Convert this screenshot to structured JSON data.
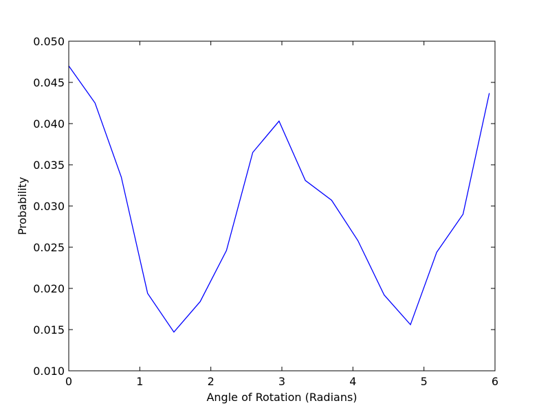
{
  "chart_data": {
    "type": "line",
    "title": "",
    "xlabel": "Angle of Rotation (Radians)",
    "ylabel": "Probability",
    "xlim": [
      0,
      6
    ],
    "ylim": [
      0.01,
      0.05
    ],
    "grid": false,
    "x_ticks": [
      0,
      1,
      2,
      3,
      4,
      5,
      6
    ],
    "x_tick_labels": [
      "0",
      "1",
      "2",
      "3",
      "4",
      "5",
      "6"
    ],
    "y_ticks": [
      0.01,
      0.015,
      0.02,
      0.025,
      0.03,
      0.035,
      0.04,
      0.045,
      0.05
    ],
    "y_tick_labels": [
      "0.010",
      "0.015",
      "0.020",
      "0.025",
      "0.030",
      "0.035",
      "0.040",
      "0.045",
      "0.050"
    ],
    "series": [
      {
        "color": "#0000ff",
        "x": [
          0,
          0.37,
          0.74,
          1.11,
          1.48,
          1.85,
          2.22,
          2.59,
          2.96,
          3.33,
          3.7,
          4.07,
          4.44,
          4.81,
          5.18,
          5.55,
          5.92
        ],
        "y": [
          0.047,
          0.0425,
          0.0335,
          0.0194,
          0.0147,
          0.0184,
          0.0246,
          0.0365,
          0.0403,
          0.0331,
          0.0307,
          0.0258,
          0.0192,
          0.0156,
          0.0244,
          0.029,
          0.0437
        ]
      }
    ]
  }
}
